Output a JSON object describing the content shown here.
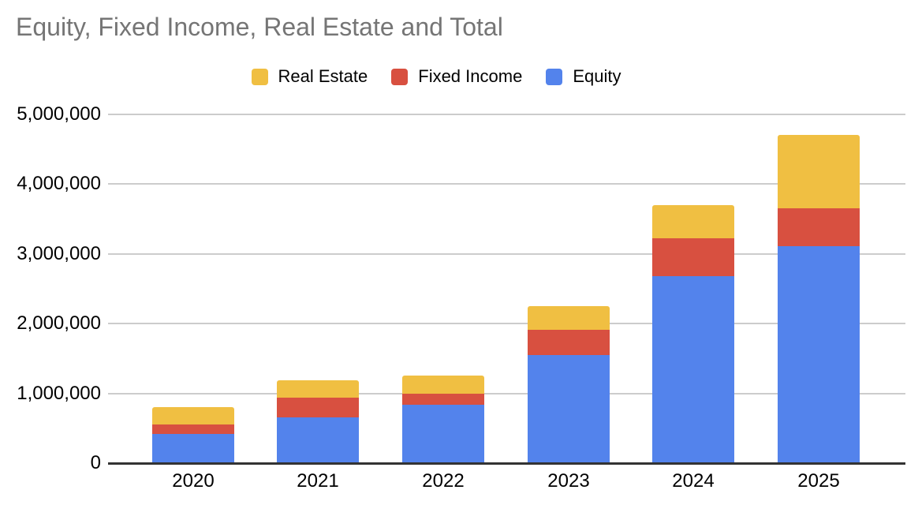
{
  "chart": {
    "title": "Equity, Fixed Income, Real Estate and Total"
  },
  "chart_data": {
    "type": "bar",
    "stacked": true,
    "title": "Equity, Fixed Income, Real Estate and Total",
    "categories": [
      "2020",
      "2021",
      "2022",
      "2023",
      "2024",
      "2025"
    ],
    "series": [
      {
        "name": "Equity",
        "color": "#5383EC",
        "values": [
          420000,
          650000,
          840000,
          1550000,
          2680000,
          3110000
        ]
      },
      {
        "name": "Fixed Income",
        "color": "#D85040",
        "values": [
          130000,
          290000,
          160000,
          360000,
          540000,
          540000
        ]
      },
      {
        "name": "Real Estate",
        "color": "#F0BF42",
        "values": [
          250000,
          250000,
          250000,
          340000,
          480000,
          1050000
        ]
      }
    ],
    "totals": [
      800000,
      1190000,
      1250000,
      2250000,
      3700000,
      4700000
    ],
    "legend": {
      "position": "top",
      "items": [
        "Real Estate",
        "Fixed Income",
        "Equity"
      ]
    },
    "y_axis": {
      "min": 0,
      "max": 5000000,
      "tick_step": 1000000,
      "ticks": [
        0,
        1000000,
        2000000,
        3000000,
        4000000,
        5000000
      ],
      "tick_labels": [
        "0",
        "1,000,000",
        "2,000,000",
        "3,000,000",
        "4,000,000",
        "5,000,000"
      ]
    },
    "x_axis": {
      "labels": [
        "2020",
        "2021",
        "2022",
        "2023",
        "2024",
        "2025"
      ]
    },
    "grid": true,
    "colors": {
      "grid": "#cccccc",
      "axis": "#333333",
      "title_text": "#757575",
      "label_text": "#000000",
      "background": "#ffffff"
    }
  }
}
